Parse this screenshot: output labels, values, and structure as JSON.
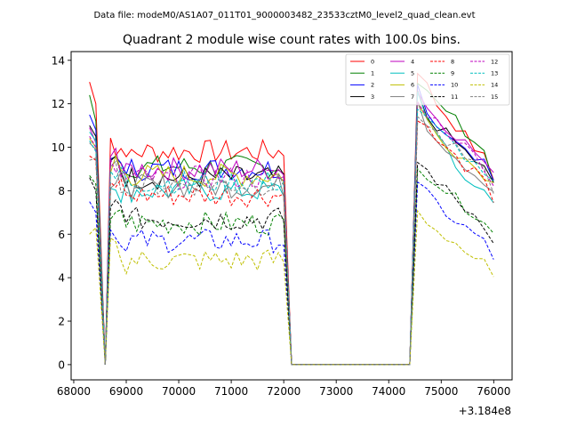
{
  "figure": {
    "suptitle": "Data file: modeM0/AS1A07_011T01_9000003482_23533cztM0_level2_quad_clean.evt"
  },
  "chart_data": {
    "type": "line",
    "title": "Quadrant 2 module wise count rates with 100.0s bins.",
    "xlabel": "",
    "ylabel": "",
    "x_offset_label": "+3.184e8",
    "xlim": [
      67950,
      76350
    ],
    "ylim": [
      -0.7,
      14.4
    ],
    "xticks": [
      68000,
      69000,
      70000,
      71000,
      72000,
      73000,
      74000,
      75000,
      76000
    ],
    "yticks": [
      0,
      2,
      4,
      6,
      8,
      10,
      12,
      14
    ],
    "grid": false,
    "legend": {
      "position": "top-right",
      "columns": 4
    },
    "gaps": {
      "dip_x": 68600,
      "off_start": 72150,
      "off_end": 74400
    },
    "series": [
      {
        "name": "0",
        "color": "#ff0000",
        "style": "solid",
        "start": [
          13.0,
          12.0
        ],
        "level": 9.8,
        "end": [
          13.6,
          12.8,
          12.0,
          11.5,
          11.0,
          10.5,
          10.0,
          9.5,
          8.5
        ]
      },
      {
        "name": "1",
        "color": "#008000",
        "style": "solid",
        "start": [
          12.4,
          11.2
        ],
        "level": 9.1,
        "end": [
          13.0,
          12.5,
          12.0,
          11.8,
          11.2,
          10.8,
          10.3,
          9.8,
          8.4
        ]
      },
      {
        "name": "2",
        "color": "#0000ff",
        "style": "solid",
        "start": [
          11.5,
          10.8
        ],
        "level": 9.0,
        "end": [
          12.8,
          11.8,
          11.0,
          10.8,
          10.3,
          10.0,
          9.7,
          9.3,
          8.5
        ]
      },
      {
        "name": "3",
        "color": "#000000",
        "style": "solid",
        "start": [
          11.0,
          10.5
        ],
        "level": 8.6,
        "end": [
          12.4,
          11.4,
          11.0,
          10.6,
          10.2,
          9.8,
          9.4,
          9.0,
          8.2
        ]
      },
      {
        "name": "4",
        "color": "#bf00bf",
        "style": "solid",
        "start": [
          10.9,
          10.2
        ],
        "level": 9.0,
        "end": [
          12.6,
          11.8,
          11.4,
          11.0,
          10.6,
          10.2,
          9.8,
          9.3,
          8.6
        ]
      },
      {
        "name": "5",
        "color": "#00bfbf",
        "style": "solid",
        "start": [
          10.7,
          10.3
        ],
        "level": 8.0,
        "end": [
          12.5,
          11.5,
          10.5,
          9.8,
          9.0,
          8.6,
          8.3,
          8.0,
          7.4
        ]
      },
      {
        "name": "6",
        "color": "#bfbf00",
        "style": "solid",
        "start": [
          10.4,
          10.0
        ],
        "level": 8.7,
        "end": [
          12.0,
          11.2,
          10.6,
          10.2,
          9.8,
          9.5,
          9.1,
          8.8,
          8.3
        ]
      },
      {
        "name": "7",
        "color": "#808080",
        "style": "solid",
        "start": [
          10.2,
          9.9
        ],
        "level": 8.2,
        "end": [
          12.2,
          11.0,
          10.5,
          10.0,
          9.6,
          9.2,
          8.8,
          8.5,
          8.0
        ]
      },
      {
        "name": "8",
        "color": "#ff0000",
        "style": "dashed",
        "start": [
          9.6,
          9.4
        ],
        "level": 7.8,
        "end": [
          11.5,
          10.8,
          10.3,
          9.9,
          9.5,
          9.1,
          8.8,
          8.4,
          7.2
        ]
      },
      {
        "name": "9",
        "color": "#008000",
        "style": "dashed",
        "start": [
          8.7,
          8.3
        ],
        "level": 6.5,
        "end": [
          9.3,
          8.8,
          8.4,
          8.0,
          7.6,
          7.3,
          7.0,
          6.7,
          6.0
        ]
      },
      {
        "name": "10",
        "color": "#0000ff",
        "style": "dashed",
        "start": [
          7.5,
          7.0
        ],
        "level": 5.7,
        "end": [
          8.2,
          7.8,
          7.4,
          7.0,
          6.6,
          6.3,
          6.0,
          5.6,
          4.8
        ]
      },
      {
        "name": "11",
        "color": "#000000",
        "style": "dashed",
        "start": [
          8.6,
          8.0
        ],
        "level": 6.7,
        "end": [
          9.3,
          8.9,
          8.5,
          8.0,
          7.6,
          7.2,
          6.9,
          6.5,
          5.8
        ]
      },
      {
        "name": "12",
        "color": "#bf00bf",
        "style": "dashed",
        "start": [
          10.5,
          10.0
        ],
        "level": 8.6,
        "end": [
          12.0,
          11.6,
          11.2,
          10.8,
          10.4,
          10.0,
          9.6,
          9.2,
          8.4
        ]
      },
      {
        "name": "13",
        "color": "#00bfbf",
        "style": "dashed",
        "start": [
          10.3,
          9.8
        ],
        "level": 8.4,
        "end": [
          11.8,
          11.2,
          10.8,
          10.4,
          10.0,
          9.6,
          9.2,
          8.9,
          8.2
        ]
      },
      {
        "name": "14",
        "color": "#bfbf00",
        "style": "dashed",
        "start": [
          6.0,
          6.3
        ],
        "level": 4.8,
        "end": [
          7.0,
          6.6,
          6.2,
          5.9,
          5.6,
          5.2,
          4.9,
          4.6,
          3.9
        ]
      },
      {
        "name": "15",
        "color": "#808080",
        "style": "dashed",
        "start": [
          9.4,
          9.5
        ],
        "level": 8.3,
        "end": [
          11.6,
          11.0,
          10.6,
          10.2,
          9.9,
          9.5,
          9.1,
          8.8,
          8.1
        ]
      }
    ]
  }
}
